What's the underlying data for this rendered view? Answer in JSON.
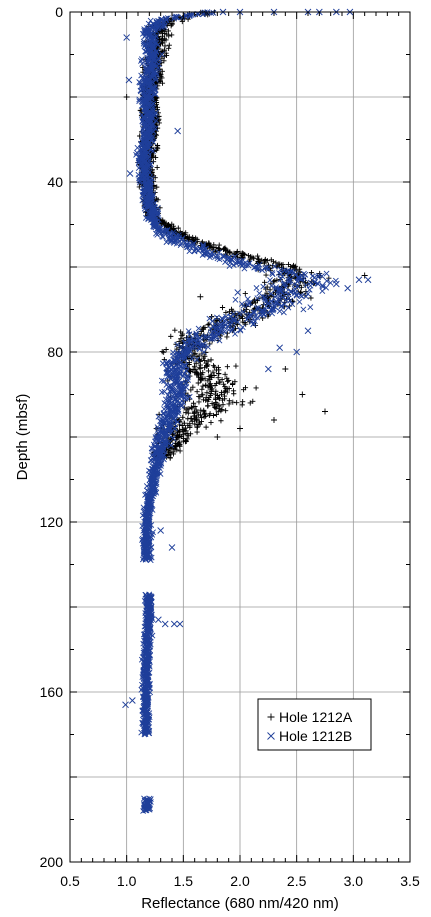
{
  "chart_data": {
    "type": "scatter",
    "title": "",
    "xlabel": "Reflectance (680 nm/420 nm)",
    "ylabel": "Depth (mbsf)",
    "xlim": [
      0.5,
      3.5
    ],
    "ylim": [
      0,
      200
    ],
    "y_inverted": true,
    "x_major_ticks": [
      0.5,
      1.0,
      1.5,
      2.0,
      2.5,
      3.0,
      3.5
    ],
    "x_tick_labels": [
      "0.5",
      "1.0",
      "1.5",
      "2.0",
      "2.5",
      "3.0",
      "3.5"
    ],
    "y_major_ticks": [
      0,
      40,
      80,
      120,
      160,
      200
    ],
    "y_tick_labels": [
      "0",
      "40",
      "80",
      "120",
      "160",
      "200"
    ],
    "grid": true,
    "legend_position": "lower-right",
    "legend": [
      {
        "marker": "+",
        "label": "Hole 1212A",
        "color": "#000000"
      },
      {
        "marker": "x",
        "label": "Hole 1212B",
        "color": "#1f3f9a"
      }
    ],
    "series": [
      {
        "name": "Hole 1212A",
        "marker": "+",
        "color": "#000000",
        "profile": [
          {
            "depth": 0,
            "value": 1.72
          },
          {
            "depth": 2,
            "value": 1.35
          },
          {
            "depth": 5,
            "value": 1.28
          },
          {
            "depth": 10,
            "value": 1.25
          },
          {
            "depth": 15,
            "value": 1.22
          },
          {
            "depth": 20,
            "value": 1.2
          },
          {
            "depth": 25,
            "value": 1.22
          },
          {
            "depth": 30,
            "value": 1.2
          },
          {
            "depth": 35,
            "value": 1.18
          },
          {
            "depth": 40,
            "value": 1.18
          },
          {
            "depth": 45,
            "value": 1.2
          },
          {
            "depth": 48,
            "value": 1.22
          },
          {
            "depth": 52,
            "value": 1.45
          },
          {
            "depth": 55,
            "value": 1.7
          },
          {
            "depth": 58,
            "value": 2.1
          },
          {
            "depth": 60,
            "value": 2.4
          },
          {
            "depth": 62,
            "value": 2.5
          },
          {
            "depth": 65,
            "value": 2.4
          },
          {
            "depth": 68,
            "value": 2.3
          },
          {
            "depth": 70,
            "value": 2.1
          },
          {
            "depth": 73,
            "value": 1.9
          },
          {
            "depth": 76,
            "value": 1.65
          },
          {
            "depth": 80,
            "value": 1.5
          },
          {
            "depth": 84,
            "value": 1.65
          },
          {
            "depth": 88,
            "value": 1.7
          },
          {
            "depth": 92,
            "value": 1.75
          },
          {
            "depth": 95,
            "value": 1.6
          },
          {
            "depth": 98,
            "value": 1.45
          },
          {
            "depth": 102,
            "value": 1.4
          },
          {
            "depth": 105,
            "value": 1.3
          }
        ],
        "spread": [
          {
            "depth": 0,
            "value": 0.1
          },
          {
            "depth": 50,
            "value": 0.06
          },
          {
            "depth": 56,
            "value": 0.12
          },
          {
            "depth": 62,
            "value": 0.25
          },
          {
            "depth": 70,
            "value": 0.25
          },
          {
            "depth": 80,
            "value": 0.18
          },
          {
            "depth": 90,
            "value": 0.35
          },
          {
            "depth": 100,
            "value": 0.15
          },
          {
            "depth": 105,
            "value": 0.1
          }
        ],
        "ranges": [
          [
            0,
            105
          ]
        ],
        "count": 1700,
        "outliers": [
          {
            "x": 1.0,
            "y": 20
          },
          {
            "x": 1.55,
            "y": 77
          },
          {
            "x": 2.75,
            "y": 94
          },
          {
            "x": 2.55,
            "y": 90
          },
          {
            "x": 3.1,
            "y": 62
          },
          {
            "x": 2.2,
            "y": 72
          },
          {
            "x": 2.4,
            "y": 84
          },
          {
            "x": 2.3,
            "y": 96
          },
          {
            "x": 1.8,
            "y": 100
          },
          {
            "x": 2.0,
            "y": 98
          },
          {
            "x": 1.65,
            "y": 67
          }
        ]
      },
      {
        "name": "Hole 1212B",
        "marker": "x",
        "color": "#1f3f9a",
        "profile": [
          {
            "depth": 0,
            "value": 1.72
          },
          {
            "depth": 2,
            "value": 1.3
          },
          {
            "depth": 5,
            "value": 1.2
          },
          {
            "depth": 10,
            "value": 1.22
          },
          {
            "depth": 15,
            "value": 1.2
          },
          {
            "depth": 20,
            "value": 1.18
          },
          {
            "depth": 25,
            "value": 1.2
          },
          {
            "depth": 30,
            "value": 1.17
          },
          {
            "depth": 35,
            "value": 1.15
          },
          {
            "depth": 40,
            "value": 1.17
          },
          {
            "depth": 45,
            "value": 1.2
          },
          {
            "depth": 50,
            "value": 1.25
          },
          {
            "depth": 54,
            "value": 1.45
          },
          {
            "depth": 57,
            "value": 1.75
          },
          {
            "depth": 60,
            "value": 2.15
          },
          {
            "depth": 62,
            "value": 2.6
          },
          {
            "depth": 64,
            "value": 2.55
          },
          {
            "depth": 66,
            "value": 2.4
          },
          {
            "depth": 68,
            "value": 2.3
          },
          {
            "depth": 70,
            "value": 2.3
          },
          {
            "depth": 72,
            "value": 2.0
          },
          {
            "depth": 75,
            "value": 1.8
          },
          {
            "depth": 78,
            "value": 1.6
          },
          {
            "depth": 82,
            "value": 1.45
          },
          {
            "depth": 86,
            "value": 1.45
          },
          {
            "depth": 90,
            "value": 1.45
          },
          {
            "depth": 94,
            "value": 1.4
          },
          {
            "depth": 98,
            "value": 1.35
          },
          {
            "depth": 102,
            "value": 1.3
          },
          {
            "depth": 108,
            "value": 1.25
          },
          {
            "depth": 115,
            "value": 1.2
          },
          {
            "depth": 120,
            "value": 1.18
          },
          {
            "depth": 128,
            "value": 1.18
          },
          {
            "depth": 137,
            "value": 1.2
          },
          {
            "depth": 150,
            "value": 1.18
          },
          {
            "depth": 160,
            "value": 1.17
          },
          {
            "depth": 169,
            "value": 1.17
          },
          {
            "depth": 185,
            "value": 1.18
          },
          {
            "depth": 188,
            "value": 1.18
          }
        ],
        "spread": [
          {
            "depth": 0,
            "value": 0.08
          },
          {
            "depth": 50,
            "value": 0.05
          },
          {
            "depth": 58,
            "value": 0.15
          },
          {
            "depth": 65,
            "value": 0.3
          },
          {
            "depth": 72,
            "value": 0.25
          },
          {
            "depth": 80,
            "value": 0.12
          },
          {
            "depth": 90,
            "value": 0.12
          },
          {
            "depth": 100,
            "value": 0.08
          },
          {
            "depth": 110,
            "value": 0.04
          },
          {
            "depth": 188,
            "value": 0.03
          }
        ],
        "ranges": [
          [
            0,
            129
          ],
          [
            137,
            170
          ],
          [
            185,
            188
          ]
        ],
        "count": 2300,
        "outliers": [
          {
            "x": 1.85,
            "y": 0
          },
          {
            "x": 2.0,
            "y": 0
          },
          {
            "x": 2.3,
            "y": 0
          },
          {
            "x": 2.6,
            "y": 0
          },
          {
            "x": 2.7,
            "y": 0
          },
          {
            "x": 2.85,
            "y": 0
          },
          {
            "x": 2.97,
            "y": 0
          },
          {
            "x": 1.0,
            "y": 6
          },
          {
            "x": 1.02,
            "y": 16
          },
          {
            "x": 1.45,
            "y": 28
          },
          {
            "x": 1.03,
            "y": 38
          },
          {
            "x": 3.13,
            "y": 63
          },
          {
            "x": 3.05,
            "y": 63
          },
          {
            "x": 2.95,
            "y": 65
          },
          {
            "x": 2.85,
            "y": 64
          },
          {
            "x": 2.5,
            "y": 80
          },
          {
            "x": 2.35,
            "y": 79
          },
          {
            "x": 2.6,
            "y": 75
          },
          {
            "x": 2.25,
            "y": 84
          },
          {
            "x": 1.98,
            "y": 66
          },
          {
            "x": 1.3,
            "y": 122
          },
          {
            "x": 1.15,
            "y": 122
          },
          {
            "x": 1.4,
            "y": 126
          },
          {
            "x": 1.34,
            "y": 144
          },
          {
            "x": 1.42,
            "y": 144
          },
          {
            "x": 1.47,
            "y": 144
          },
          {
            "x": 1.28,
            "y": 143
          },
          {
            "x": 0.99,
            "y": 163
          },
          {
            "x": 1.05,
            "y": 162
          }
        ]
      }
    ]
  }
}
